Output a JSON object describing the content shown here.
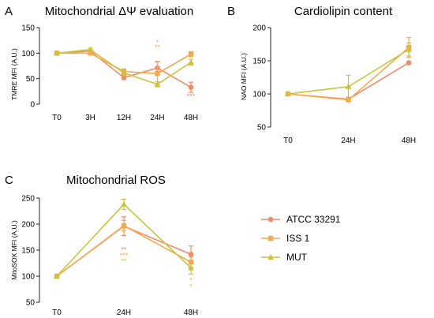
{
  "colors": {
    "ATCC 33291": "#F28B6B",
    "ISS 1": "#F6A94E",
    "MUT": "#C9C43A"
  },
  "legend": [
    {
      "name": "ATCC 33291",
      "marker": "circle"
    },
    {
      "name": "ISS 1",
      "marker": "square"
    },
    {
      "name": "MUT",
      "marker": "triangle"
    }
  ],
  "chart_data": [
    {
      "type": "line",
      "panel": "A",
      "title": "Mitochondrial ΔΨ evaluation",
      "ylabel": "TMRE MFI (A.U.)",
      "categories": [
        "T0",
        "3H",
        "12H",
        "24H",
        "48H"
      ],
      "ylim": [
        0,
        150
      ],
      "yticks": [
        "0",
        "50",
        "100",
        "150"
      ],
      "series": [
        {
          "name": "ATCC 33291",
          "values": [
            100,
            104,
            52,
            71,
            33
          ],
          "err": [
            0,
            3,
            4,
            12,
            10
          ]
        },
        {
          "name": "ISS 1",
          "values": [
            100,
            100,
            64,
            60,
            98
          ],
          "err": [
            0,
            3,
            5,
            24,
            5
          ]
        },
        {
          "name": "MUT",
          "values": [
            100,
            107,
            61,
            39,
            82
          ],
          "err": [
            0,
            3,
            5,
            5,
            6
          ]
        }
      ],
      "annotations": [
        {
          "category": "24H",
          "text": "*",
          "color": "#C9C43A",
          "y": 122
        },
        {
          "category": "24H",
          "text": "**",
          "color": "#F6A94E",
          "y": 113
        },
        {
          "category": "48H",
          "text": "***",
          "color": "#F28B6B",
          "y": 17
        }
      ]
    },
    {
      "type": "line",
      "panel": "B",
      "title": "Cardiolipin content",
      "ylabel": "NAO MFI (A.U.)",
      "categories": [
        "T0",
        "24H",
        "48H"
      ],
      "ylim": [
        50,
        200
      ],
      "yticks": [
        "50",
        "100",
        "150",
        "200"
      ],
      "series": [
        {
          "name": "ATCC 33291",
          "values": [
            100,
            92,
            147
          ],
          "err": [
            0,
            3,
            0
          ]
        },
        {
          "name": "ISS 1",
          "values": [
            100,
            91,
            170
          ],
          "err": [
            0,
            2,
            15
          ]
        },
        {
          "name": "MUT",
          "values": [
            100,
            111,
            167
          ],
          "err": [
            0,
            17,
            10
          ]
        }
      ],
      "annotations": []
    },
    {
      "type": "line",
      "panel": "C",
      "title": "Mitochondrial ROS",
      "ylabel": "MitoSOX MFI (A.U.)",
      "categories": [
        "T0",
        "24H",
        "48H"
      ],
      "ylim": [
        50,
        250
      ],
      "yticks": [
        "50",
        "100",
        "150",
        "200",
        "250"
      ],
      "series": [
        {
          "name": "ATCC 33291",
          "values": [
            100,
            196,
            142
          ],
          "err": [
            0,
            18,
            16
          ]
        },
        {
          "name": "ISS 1",
          "values": [
            100,
            197,
            127
          ],
          "err": [
            0,
            10,
            10
          ]
        },
        {
          "name": "MUT",
          "values": [
            100,
            238,
            116
          ],
          "err": [
            0,
            10,
            12
          ]
        }
      ],
      "annotations": [
        {
          "category": "24H",
          "text": "**",
          "color": "#F28B6B",
          "y": 152
        },
        {
          "category": "24H",
          "text": "***",
          "color": "#F6A94E",
          "y": 141
        },
        {
          "category": "24H",
          "text": "**",
          "color": "#C9C43A",
          "y": 130
        },
        {
          "category": "48H",
          "text": "*",
          "color": "#F6A94E",
          "y": 93
        },
        {
          "category": "48H",
          "text": "*",
          "color": "#C9C43A",
          "y": 82
        }
      ]
    }
  ]
}
